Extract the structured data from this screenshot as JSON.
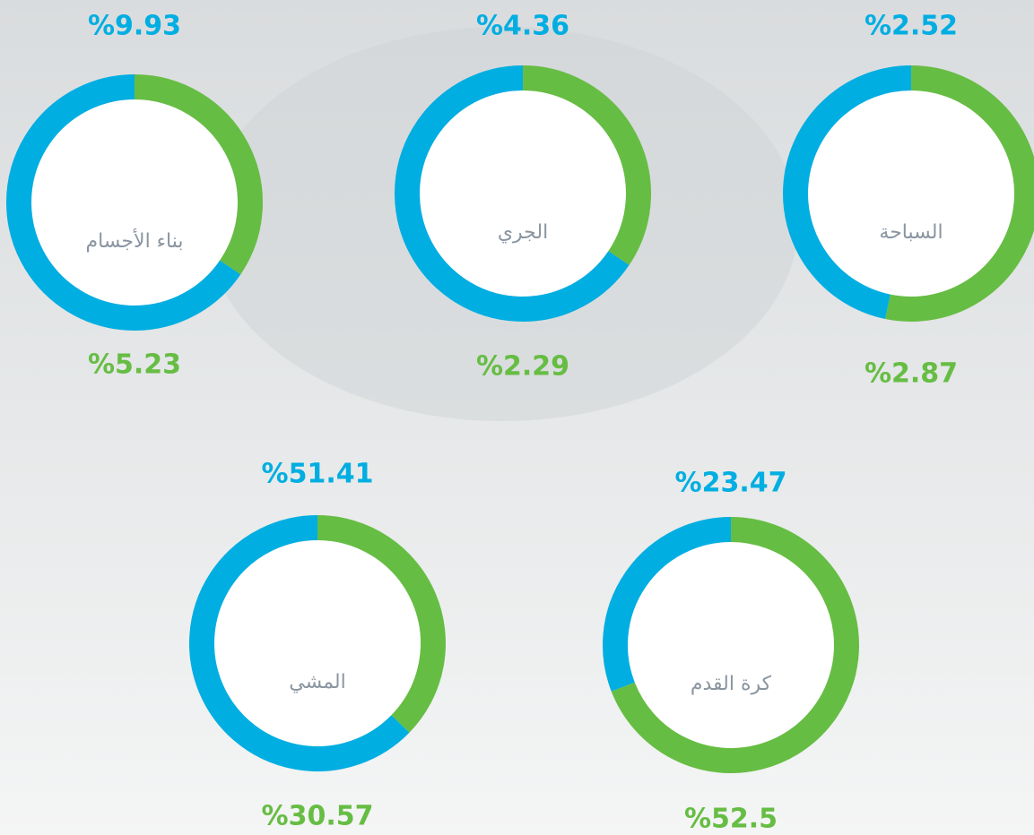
{
  "chart_data": [
    {
      "type": "donut",
      "title": "بناء الأجسام",
      "values": [
        9.93,
        5.23
      ],
      "value_labels": [
        "%9.93",
        "%5.23"
      ],
      "colors": [
        "#00aee2",
        "#66bd43"
      ]
    },
    {
      "type": "donut",
      "title": "الجري",
      "values": [
        4.36,
        2.29
      ],
      "value_labels": [
        "%4.36",
        "%2.29"
      ],
      "colors": [
        "#00aee2",
        "#66bd43"
      ]
    },
    {
      "type": "donut",
      "title": "السباحة",
      "values": [
        2.52,
        2.87
      ],
      "value_labels": [
        "%2.52",
        "%2.87"
      ],
      "colors": [
        "#00aee2",
        "#66bd43"
      ]
    },
    {
      "type": "donut",
      "title": "المشي",
      "values": [
        51.41,
        30.57
      ],
      "value_labels": [
        "%51.41",
        "%30.57"
      ],
      "colors": [
        "#00aee2",
        "#66bd43"
      ]
    },
    {
      "type": "donut",
      "title": "كرة القدم",
      "values": [
        23.47,
        52.5
      ],
      "value_labels": [
        "%23.47",
        "%52.5"
      ],
      "colors": [
        "#00aee2",
        "#66bd43"
      ]
    }
  ]
}
